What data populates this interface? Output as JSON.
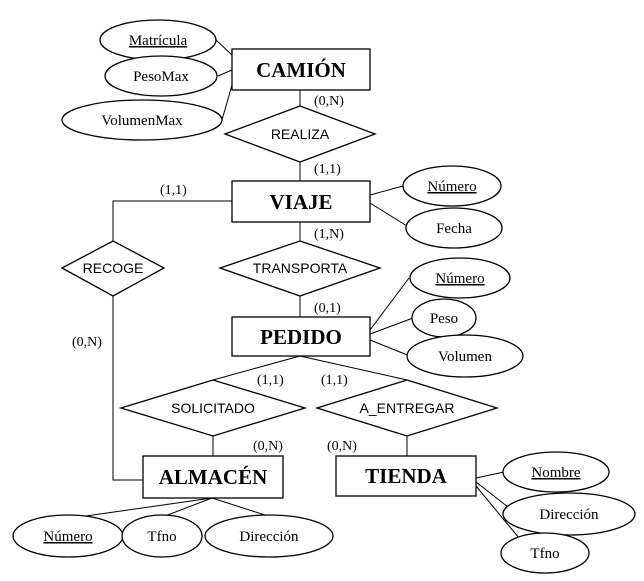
{
  "entities": {
    "camion": "CAMIÓN",
    "viaje": "VIAJE",
    "pedido": "PEDIDO",
    "almacen": "ALMACÉN",
    "tienda": "TIENDA"
  },
  "relationships": {
    "realiza": "REALIZA",
    "transporta": "TRANSPORTA",
    "recoge": "RECOGE",
    "solicitado": "SOLICITADO",
    "a_entregar": "A_ENTREGAR"
  },
  "attributes": {
    "camion": [
      {
        "label": "Matrícula",
        "key": true
      },
      {
        "label": "PesoMax",
        "key": false
      },
      {
        "label": "VolumenMax",
        "key": false
      }
    ],
    "viaje": [
      {
        "label": "Número",
        "key": true
      },
      {
        "label": "Fecha",
        "key": false
      }
    ],
    "pedido": [
      {
        "label": "Número",
        "key": true
      },
      {
        "label": "Peso",
        "key": false
      },
      {
        "label": "Volumen",
        "key": false
      }
    ],
    "almacen": [
      {
        "label": "Número",
        "key": true
      },
      {
        "label": "Tfno",
        "key": false
      },
      {
        "label": "Dirección",
        "key": false
      }
    ],
    "tienda": [
      {
        "label": "Nombre",
        "key": true
      },
      {
        "label": "Dirección",
        "key": false
      },
      {
        "label": "Tfno",
        "key": false
      }
    ]
  },
  "cardinalities": {
    "camion_realiza": "(0,N)",
    "realiza_viaje": "(1,1)",
    "viaje_recoge": "(1,1)",
    "viaje_transporta": "(1,N)",
    "transporta_pedido": "(0,1)",
    "recoge_almacen": "(0,N)",
    "pedido_solicitado": "(1,1)",
    "pedido_a_entregar": "(1,1)",
    "solicitado_almacen": "(0,N)",
    "a_entregar_tienda": "(0,N)"
  }
}
